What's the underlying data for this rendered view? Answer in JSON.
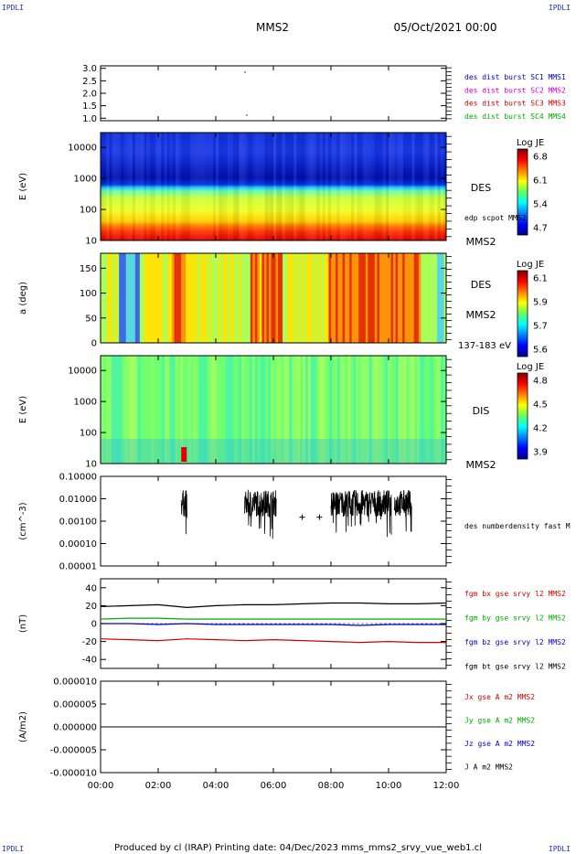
{
  "header": {
    "corner_tl": "IPDLI",
    "corner_tr": "IPDLI",
    "corner_bl": "IPDLI",
    "corner_br": "IPDLI",
    "title": "MMS2",
    "date": "05/Oct/2021 00:00",
    "footer": "Produced by cl (IRAP)   Printing date: 04/Dec/2023   mms_mms2_srvy_vue_web1.cl"
  },
  "colors": {
    "blue": "#0000cc",
    "magenta": "#cc00cc",
    "red": "#cc0000",
    "green": "#00aa00",
    "black": "#000000"
  },
  "chart_data": [
    {
      "type": "scatter",
      "ylim": [
        0.9,
        3.1
      ],
      "yticks": [
        "3.0",
        "2.5",
        "2.0",
        "1.5",
        "1.0"
      ],
      "yvalues": [
        3.0,
        2.5,
        2.0,
        1.5,
        1.0
      ],
      "legend": [
        {
          "label": "des dist burst SC1 MMS1",
          "color": "#0000cc"
        },
        {
          "label": "des dist burst SC2 MMS2",
          "color": "#cc00cc"
        },
        {
          "label": "des dist burst SC3 MMS3",
          "color": "#cc0000"
        },
        {
          "label": "des dist burst SC4 MMS4",
          "color": "#00aa00"
        }
      ]
    },
    {
      "type": "heatmap",
      "ylabel": "E (eV)",
      "scale": "log",
      "ylim": [
        10,
        30000
      ],
      "yticks": [
        "10000",
        "1000",
        "100",
        "10"
      ],
      "yvalues": [
        10000,
        1000,
        100,
        10
      ],
      "right_label": "DES",
      "right_sub": "edp scpot MMS2",
      "bottom_right": "MMS2",
      "colorbar": {
        "title": "Log JE",
        "ticks": [
          "6.8",
          "6.1",
          "5.4",
          "4.7"
        ]
      }
    },
    {
      "type": "heatmap",
      "ylabel": "a (deg)",
      "ylim": [
        0,
        180
      ],
      "yticks": [
        "150",
        "100",
        "50",
        "0"
      ],
      "yvalues": [
        150,
        100,
        50,
        0
      ],
      "right_label": "DES",
      "right_sub": "MMS2",
      "bottom_right": "137-183 eV",
      "colorbar": {
        "title": "Log JE",
        "ticks": [
          "6.1",
          "5.9",
          "5.7",
          "5.6"
        ]
      }
    },
    {
      "type": "heatmap",
      "ylabel": "E (eV)",
      "scale": "log",
      "ylim": [
        10,
        30000
      ],
      "yticks": [
        "10000",
        "1000",
        "100",
        "10"
      ],
      "yvalues": [
        10000,
        1000,
        100,
        10
      ],
      "right_label": "DIS",
      "bottom_right": "MMS2",
      "colorbar": {
        "title": "Log JE",
        "ticks": [
          "4.8",
          "4.5",
          "4.2",
          "3.9"
        ]
      }
    },
    {
      "type": "line",
      "ylabel": "(cm^-3)",
      "scale": "log",
      "ylim": [
        1e-05,
        0.1
      ],
      "yticks": [
        "0.10000",
        "0.01000",
        "0.00100",
        "0.00010",
        "0.00001"
      ],
      "yvalues": [
        0.1,
        0.01,
        0.001,
        0.0001,
        1e-05
      ],
      "legend": [
        {
          "label": "des numberdensity fast M",
          "color": "#000000"
        }
      ]
    },
    {
      "type": "line",
      "ylabel": "(nT)",
      "ylim": [
        -50,
        50
      ],
      "yticks": [
        "40",
        "20",
        "0",
        "-20",
        "-40"
      ],
      "yvalues": [
        40,
        20,
        0,
        -20,
        -40
      ],
      "series": [
        {
          "name": "fgm bx gse srvy l2 MMS2",
          "color": "#cc0000",
          "x": [
            0,
            1,
            2,
            3,
            4,
            5,
            6,
            7,
            8,
            9,
            10,
            11,
            12
          ],
          "values": [
            -17,
            -18,
            -19,
            -17,
            -18,
            -19,
            -18,
            -19,
            -20,
            -21,
            -20,
            -21,
            -21
          ]
        },
        {
          "name": "fgm by gse srvy l2 MMS2",
          "color": "#00aa00",
          "x": [
            0,
            1,
            2,
            3,
            4,
            5,
            6,
            7,
            8,
            9,
            10,
            11,
            12
          ],
          "values": [
            5,
            6,
            6,
            5,
            5,
            5,
            5,
            5,
            5,
            5,
            5,
            5,
            5
          ]
        },
        {
          "name": "fgm bz gse srvy l2 MMS2",
          "color": "#0000cc",
          "x": [
            0,
            1,
            2,
            3,
            4,
            5,
            6,
            7,
            8,
            9,
            10,
            11,
            12
          ],
          "values": [
            0,
            0,
            -1,
            0,
            -1,
            -1,
            -1,
            -1,
            -1,
            -2,
            -1,
            -1,
            -1
          ]
        },
        {
          "name": "fgm bt gse srvy l2 MMS2",
          "color": "#000000",
          "x": [
            0,
            1,
            2,
            3,
            4,
            5,
            6,
            7,
            8,
            9,
            10,
            11,
            12
          ],
          "values": [
            19,
            20,
            21,
            18,
            20,
            21,
            21,
            22,
            23,
            23,
            22,
            22,
            23
          ]
        }
      ]
    },
    {
      "type": "line",
      "ylabel": "(A/m2)",
      "ylim": [
        -1e-05,
        1e-05
      ],
      "yticks": [
        "0.000010",
        "0.000005",
        "0.000000",
        "-0.000005",
        "-0.000010"
      ],
      "yvalues": [
        1e-05,
        5e-06,
        0,
        -5e-06,
        -1e-05
      ],
      "series": [
        {
          "name": "Jx gse A m2 MMS2",
          "color": "#cc0000",
          "x": [
            0,
            12
          ],
          "values": [
            0,
            0
          ]
        },
        {
          "name": "Jy gse A m2 MMS2",
          "color": "#00aa00",
          "x": [
            0,
            12
          ],
          "values": [
            0,
            0
          ]
        },
        {
          "name": "Jz gse A m2 MMS2",
          "color": "#0000cc",
          "x": [
            0,
            12
          ],
          "values": [
            0,
            0
          ]
        },
        {
          "name": "J A m2 MMS2",
          "color": "#000000",
          "x": [
            0,
            12
          ],
          "values": [
            0,
            0
          ]
        }
      ]
    }
  ],
  "xaxis": {
    "ticks": [
      "00:00",
      "02:00",
      "04:00",
      "06:00",
      "08:00",
      "10:00",
      "12:00"
    ],
    "hours": [
      0,
      2,
      4,
      6,
      8,
      10,
      12
    ]
  }
}
